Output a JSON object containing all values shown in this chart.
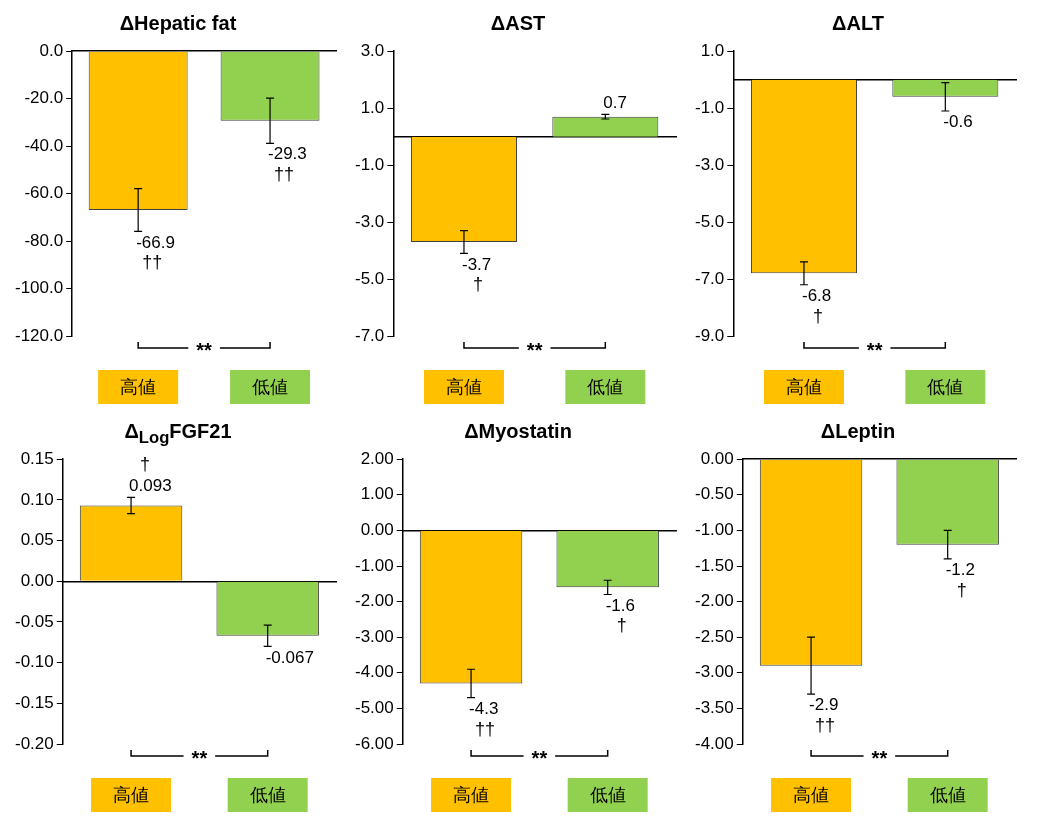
{
  "chart_data": [
    {
      "type": "bar",
      "title": "ΔHepatic fat",
      "categories": [
        "高値",
        "低値"
      ],
      "values": [
        -66.9,
        -29.3
      ],
      "colors": [
        "#ffc000",
        "#92d050"
      ],
      "errors": [
        9,
        9.5
      ],
      "ylim": [
        -120,
        0
      ],
      "yticks": [
        {
          "value": -120,
          "label": "-120.0"
        },
        {
          "value": -100,
          "label": "-100.0"
        },
        {
          "value": -80,
          "label": "-80.0"
        },
        {
          "value": -60,
          "label": "-60.0"
        },
        {
          "value": -40,
          "label": "-40.0"
        },
        {
          "value": -20,
          "label": "-20.0"
        },
        {
          "value": 0,
          "label": "0.0"
        }
      ],
      "data_labels": true,
      "grid": false,
      "legend": false,
      "annotations": [
        {
          "text": "††",
          "x": "高値",
          "y": -66.9
        },
        {
          "text": "††",
          "x": "低値",
          "y": -29.3
        },
        "**"
      ]
    },
    {
      "type": "bar",
      "title": "ΔAST",
      "categories": [
        "高値",
        "低値"
      ],
      "values": [
        -3.7,
        0.7
      ],
      "colors": [
        "#ffc000",
        "#92d050"
      ],
      "errors": [
        0.4,
        0.08
      ],
      "ylim": [
        -7,
        3
      ],
      "yticks": [
        {
          "value": -7,
          "label": "-7.0"
        },
        {
          "value": -5,
          "label": "-5.0"
        },
        {
          "value": -3,
          "label": "-3.0"
        },
        {
          "value": -1,
          "label": "-1.0"
        },
        {
          "value": 1,
          "label": "1.0"
        },
        {
          "value": 3,
          "label": "3.0"
        }
      ],
      "data_labels": true,
      "grid": false,
      "legend": false,
      "annotations": [
        {
          "text": "†",
          "x": "高値",
          "y": -3.7
        },
        "**"
      ]
    },
    {
      "type": "bar",
      "title": "ΔALT",
      "categories": [
        "高値",
        "低値"
      ],
      "values": [
        -6.8,
        -0.6
      ],
      "colors": [
        "#ffc000",
        "#92d050"
      ],
      "errors": [
        0.4,
        0.5
      ],
      "ylim": [
        -9,
        1
      ],
      "yticks": [
        {
          "value": -9,
          "label": "-9.0"
        },
        {
          "value": -7,
          "label": "-7.0"
        },
        {
          "value": -5,
          "label": "-5.0"
        },
        {
          "value": -3,
          "label": "-3.0"
        },
        {
          "value": -1,
          "label": "-1.0"
        },
        {
          "value": 1,
          "label": "1.0"
        }
      ],
      "data_labels": true,
      "grid": false,
      "legend": false,
      "annotations": [
        {
          "text": "†",
          "x": "高値",
          "y": -6.8
        },
        "**"
      ]
    },
    {
      "type": "bar",
      "title": "Δ$_{Log}$FGF21",
      "categories": [
        "高値",
        "低値"
      ],
      "values": [
        0.093,
        -0.067
      ],
      "colors": [
        "#ffc000",
        "#92d050"
      ],
      "errors": [
        0.01,
        0.013
      ],
      "ylim": [
        -0.2,
        0.15
      ],
      "legend": false,
      "yticks": [
        {
          "value": -0.2,
          "label": "-0.20"
        },
        {
          "value": -0.15,
          "label": "-0.15"
        },
        {
          "value": -0.1,
          "label": "-0.10"
        },
        {
          "value": -0.05,
          "label": "-0.05"
        },
        {
          "value": 0,
          "label": "0.00"
        },
        {
          "value": 0.05,
          "label": "0.05"
        },
        {
          "value": 0.1,
          "label": "0.10"
        },
        {
          "value": 0.15,
          "label": "0.15"
        }
      ],
      "data_labels": true,
      "annotations": [
        {
          "text": "†",
          "x": "高値",
          "y": 0.093
        },
        "**"
      ]
    },
    {
      "type": "bar",
      "title": "ΔMyostatin",
      "categories": [
        "高値",
        "低値"
      ],
      "values": [
        -4.3,
        -1.6
      ],
      "colors": [
        "#ffc000",
        "#92d050"
      ],
      "errors": [
        0.4,
        0.2
      ],
      "ylim": [
        -6,
        2
      ],
      "yticks": [
        {
          "value": -6,
          "label": "-6.00"
        },
        {
          "value": -5,
          "label": "-5.00"
        },
        {
          "value": -4,
          "label": "-4.00"
        },
        {
          "value": -3,
          "label": "-3.00"
        },
        {
          "value": -2,
          "label": "-2.00"
        },
        {
          "value": -1,
          "label": "-1.00"
        },
        {
          "value": 0,
          "label": "0.00"
        },
        {
          "value": 1,
          "label": "1.00"
        },
        {
          "value": 2,
          "label": "2.00"
        }
      ],
      "data_labels": true,
      "legend": false,
      "annotations": [
        {
          "text": "††",
          "x": "高値",
          "y": -4.3
        },
        {
          "text": "†",
          "x": "低値",
          "y": -1.6
        },
        "**"
      ]
    },
    {
      "type": "bar",
      "title": "ΔLeptin",
      "categories": [
        "高値",
        "低値"
      ],
      "values": [
        -2.9,
        -1.2
      ],
      "colors": [
        "#ffc000",
        "#92d050"
      ],
      "errors": [
        0.4,
        0.2
      ],
      "ylim": [
        -4,
        0
      ],
      "yticks": [
        {
          "value": -4,
          "label": "-4.00"
        },
        {
          "value": -3.5,
          "label": "-3.50"
        },
        {
          "value": -3,
          "label": "-3.00"
        },
        {
          "value": -2.5,
          "label": "-2.50"
        },
        {
          "value": -2,
          "label": "-2.00"
        },
        {
          "value": -1.5,
          "label": "-1.50"
        },
        {
          "value": -1,
          "label": "-1.00"
        },
        {
          "value": -0.5,
          "label": "-0.50"
        },
        {
          "value": 0,
          "label": "0.00"
        }
      ],
      "data_labels": true,
      "grid": false,
      "legend": false,
      "annotations": [
        {
          "text": "††",
          "x": "高値",
          "y": -2.9
        },
        {
          "text": "†",
          "x": "低値",
          "y": -1.2
        },
        "**"
      ]
    }
  ]
}
